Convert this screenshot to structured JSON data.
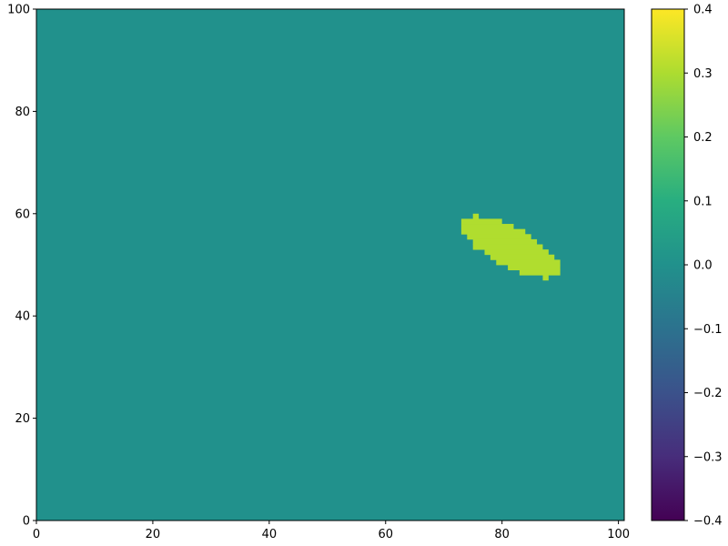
{
  "chart_data": {
    "type": "heatmap",
    "title": "",
    "xlabel": "",
    "ylabel": "",
    "xlim": [
      0,
      101
    ],
    "ylim": [
      0,
      100
    ],
    "x_ticks": [
      0,
      20,
      40,
      60,
      80,
      100
    ],
    "y_ticks": [
      0,
      20,
      40,
      60,
      80,
      100
    ],
    "grid": false,
    "background_value": 0.0,
    "colormap": "viridis",
    "colorbar": {
      "range": [
        -0.4,
        0.4
      ],
      "ticks": [
        "-0.4",
        "-0.3",
        "-0.2",
        "-0.1",
        "0.0",
        "0.1",
        "0.2",
        "0.3",
        "0.4"
      ]
    },
    "regions": [
      {
        "value": 0.3,
        "color": "#b0dd2f",
        "rows": [
          {
            "y": 59,
            "x0": 75,
            "x1": 75
          },
          {
            "y": 58,
            "x0": 73,
            "x1": 79
          },
          {
            "y": 57,
            "x0": 73,
            "x1": 81
          },
          {
            "y": 56,
            "x0": 73,
            "x1": 83
          },
          {
            "y": 55,
            "x0": 74,
            "x1": 84
          },
          {
            "y": 54,
            "x0": 75,
            "x1": 85
          },
          {
            "y": 53,
            "x0": 75,
            "x1": 86
          },
          {
            "y": 52,
            "x0": 77,
            "x1": 87
          },
          {
            "y": 51,
            "x0": 78,
            "x1": 88
          },
          {
            "y": 50,
            "x0": 79,
            "x1": 89
          },
          {
            "y": 49,
            "x0": 81,
            "x1": 89
          },
          {
            "y": 48,
            "x0": 83,
            "x1": 89
          },
          {
            "y": 47,
            "x0": 87,
            "x1": 87
          }
        ]
      }
    ]
  }
}
